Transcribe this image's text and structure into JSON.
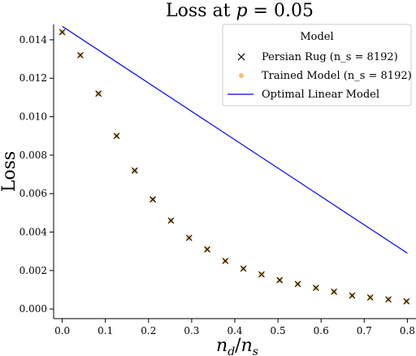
{
  "chart_data": {
    "type": "scatter",
    "title": "Loss at p = 0.05",
    "xlabel": "n_d / n_s",
    "ylabel": "Loss",
    "xlim": [
      -0.02,
      0.82
    ],
    "ylim": [
      -0.0005,
      0.0148
    ],
    "x_ticks": [
      0.0,
      0.1,
      0.2,
      0.3,
      0.4,
      0.5,
      0.6,
      0.7,
      0.8
    ],
    "x_tick_labels": [
      "0.0",
      "0.1",
      "0.2",
      "0.3",
      "0.4",
      "0.5",
      "0.6",
      "0.7",
      "0.8"
    ],
    "y_ticks": [
      0.0,
      0.002,
      0.004,
      0.006,
      0.008,
      0.01,
      0.012,
      0.014
    ],
    "y_tick_labels": [
      "0.000",
      "0.002",
      "0.004",
      "0.006",
      "0.008",
      "0.010",
      "0.012",
      "0.014"
    ],
    "grid": false,
    "legend": {
      "title": "Model",
      "placement": "top-right",
      "entries": [
        "Persian Rug (n_s = 8192)",
        "Trained Model (n_s = 8192)",
        "Optimal Linear Model"
      ]
    },
    "series": [
      {
        "name": "Persian Rug (n_s = 8192)",
        "marker": "x",
        "color": "#000000",
        "x": [
          0.0,
          0.042,
          0.084,
          0.126,
          0.168,
          0.21,
          0.252,
          0.294,
          0.336,
          0.378,
          0.42,
          0.462,
          0.504,
          0.546,
          0.588,
          0.63,
          0.672,
          0.714,
          0.756,
          0.798
        ],
        "y": [
          0.0144,
          0.0132,
          0.0112,
          0.009,
          0.0072,
          0.0057,
          0.0046,
          0.0037,
          0.0031,
          0.0025,
          0.0021,
          0.0018,
          0.0015,
          0.0013,
          0.0011,
          0.0009,
          0.0007,
          0.0006,
          0.0005,
          0.0004
        ]
      },
      {
        "name": "Trained Model (n_s = 8192)",
        "marker": "o",
        "color": "#f5c36e",
        "x": [
          0.0,
          0.042,
          0.084,
          0.126,
          0.168,
          0.21,
          0.252,
          0.294,
          0.336,
          0.378,
          0.42,
          0.462,
          0.504,
          0.546,
          0.588,
          0.63,
          0.672,
          0.714,
          0.756,
          0.798
        ],
        "y": [
          0.0144,
          0.0132,
          0.0112,
          0.009,
          0.0072,
          0.0057,
          0.0046,
          0.0037,
          0.0031,
          0.0025,
          0.0021,
          0.0018,
          0.0015,
          0.0013,
          0.0011,
          0.0009,
          0.0007,
          0.0006,
          0.0005,
          0.0004
        ]
      },
      {
        "name": "Optimal Linear Model",
        "marker": "line",
        "color": "#0000ff",
        "x": [
          0.0,
          0.8
        ],
        "y": [
          0.0147,
          0.0029
        ]
      }
    ]
  }
}
